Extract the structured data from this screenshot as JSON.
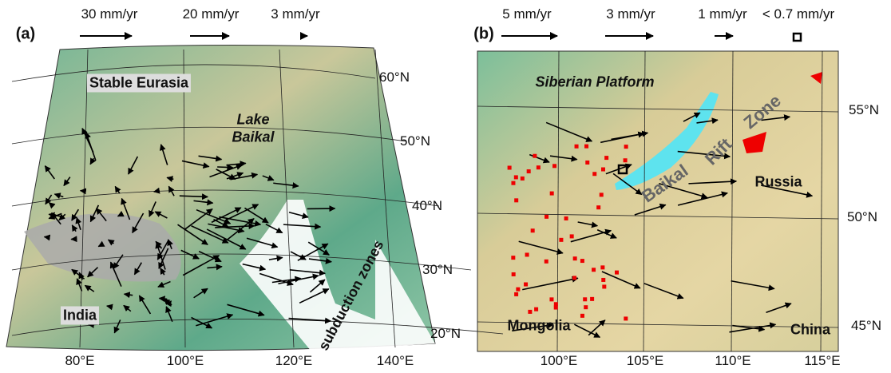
{
  "panels": [
    {
      "label": "(a)",
      "legend": [
        "30 mm/yr",
        "20 mm/yr",
        "3 mm/yr"
      ],
      "places": [
        "Stable Eurasia",
        "Lake",
        "Baikal",
        "India",
        "subduction zones"
      ],
      "lat_labels": [
        "60°N",
        "50°N",
        "40°N",
        "30°N",
        "20°N"
      ],
      "lon_labels": [
        "80°E",
        "100°E",
        "120°E",
        "140°E"
      ]
    },
    {
      "label": "(b)",
      "legend": [
        "5 mm/yr",
        "3 mm/yr",
        "1 mm/yr",
        "< 0.7 mm/yr"
      ],
      "places": [
        "Siberian Platform",
        "Baikal",
        "Rift",
        "Zone",
        "Russia",
        "Mongolia",
        "China"
      ],
      "lat_labels": [
        "55°N",
        "50°N",
        "45°N"
      ],
      "lon_labels": [
        "100°E",
        "105°E",
        "110°E",
        "115°E"
      ]
    }
  ]
}
